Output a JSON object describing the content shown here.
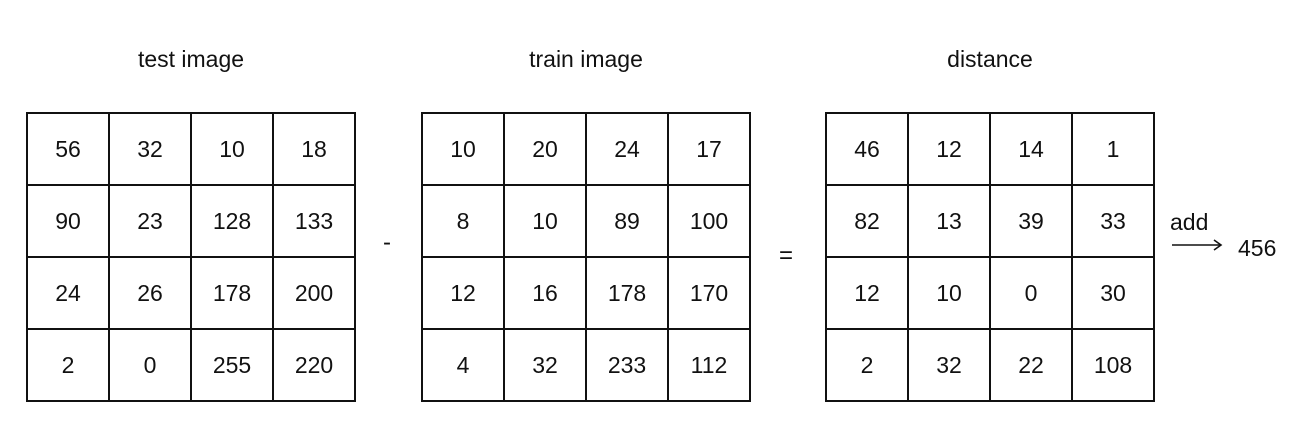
{
  "matrices": [
    {
      "title": "test image",
      "rows": [
        [
          "56",
          "32",
          "10",
          "18"
        ],
        [
          "90",
          "23",
          "128",
          "133"
        ],
        [
          "24",
          "26",
          "178",
          "200"
        ],
        [
          "2",
          "0",
          "255",
          "220"
        ]
      ]
    },
    {
      "title": "train image",
      "rows": [
        [
          "10",
          "20",
          "24",
          "17"
        ],
        [
          "8",
          "10",
          "89",
          "100"
        ],
        [
          "12",
          "16",
          "178",
          "170"
        ],
        [
          "4",
          "32",
          "233",
          "112"
        ]
      ]
    },
    {
      "title": "distance",
      "rows": [
        [
          "46",
          "12",
          "14",
          "1"
        ],
        [
          "82",
          "13",
          "39",
          "33"
        ],
        [
          "12",
          "10",
          "0",
          "30"
        ],
        [
          "2",
          "32",
          "22",
          "108"
        ]
      ]
    }
  ],
  "operators": {
    "minus": "-",
    "equals": "="
  },
  "sum": {
    "label": "add",
    "result": "456"
  }
}
